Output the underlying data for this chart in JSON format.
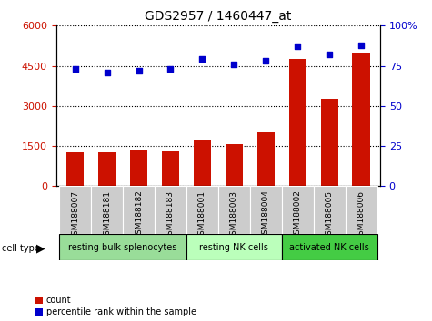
{
  "title": "GDS2957 / 1460447_at",
  "samples": [
    "GSM188007",
    "GSM188181",
    "GSM188182",
    "GSM188183",
    "GSM188001",
    "GSM188003",
    "GSM188004",
    "GSM188002",
    "GSM188005",
    "GSM188006"
  ],
  "counts": [
    1280,
    1260,
    1370,
    1340,
    1750,
    1580,
    2000,
    4750,
    3250,
    4950
  ],
  "percentiles": [
    73,
    71,
    72,
    73,
    79,
    76,
    78,
    87,
    82,
    88
  ],
  "cell_types": [
    {
      "label": "resting bulk splenocytes",
      "start": 0,
      "end": 3,
      "color": "#99dd99"
    },
    {
      "label": "resting NK cells",
      "start": 4,
      "end": 6,
      "color": "#bbffbb"
    },
    {
      "label": "activated NK cells",
      "start": 7,
      "end": 9,
      "color": "#44cc44"
    }
  ],
  "bar_color": "#cc1100",
  "dot_color": "#0000cc",
  "left_ylim": [
    0,
    6000
  ],
  "left_yticks": [
    0,
    1500,
    3000,
    4500,
    6000
  ],
  "right_ylim": [
    0,
    100
  ],
  "right_yticks": [
    0,
    25,
    50,
    75,
    100
  ],
  "left_tick_color": "#cc1100",
  "right_tick_color": "#0000cc",
  "tick_bg_color": "#cccccc"
}
